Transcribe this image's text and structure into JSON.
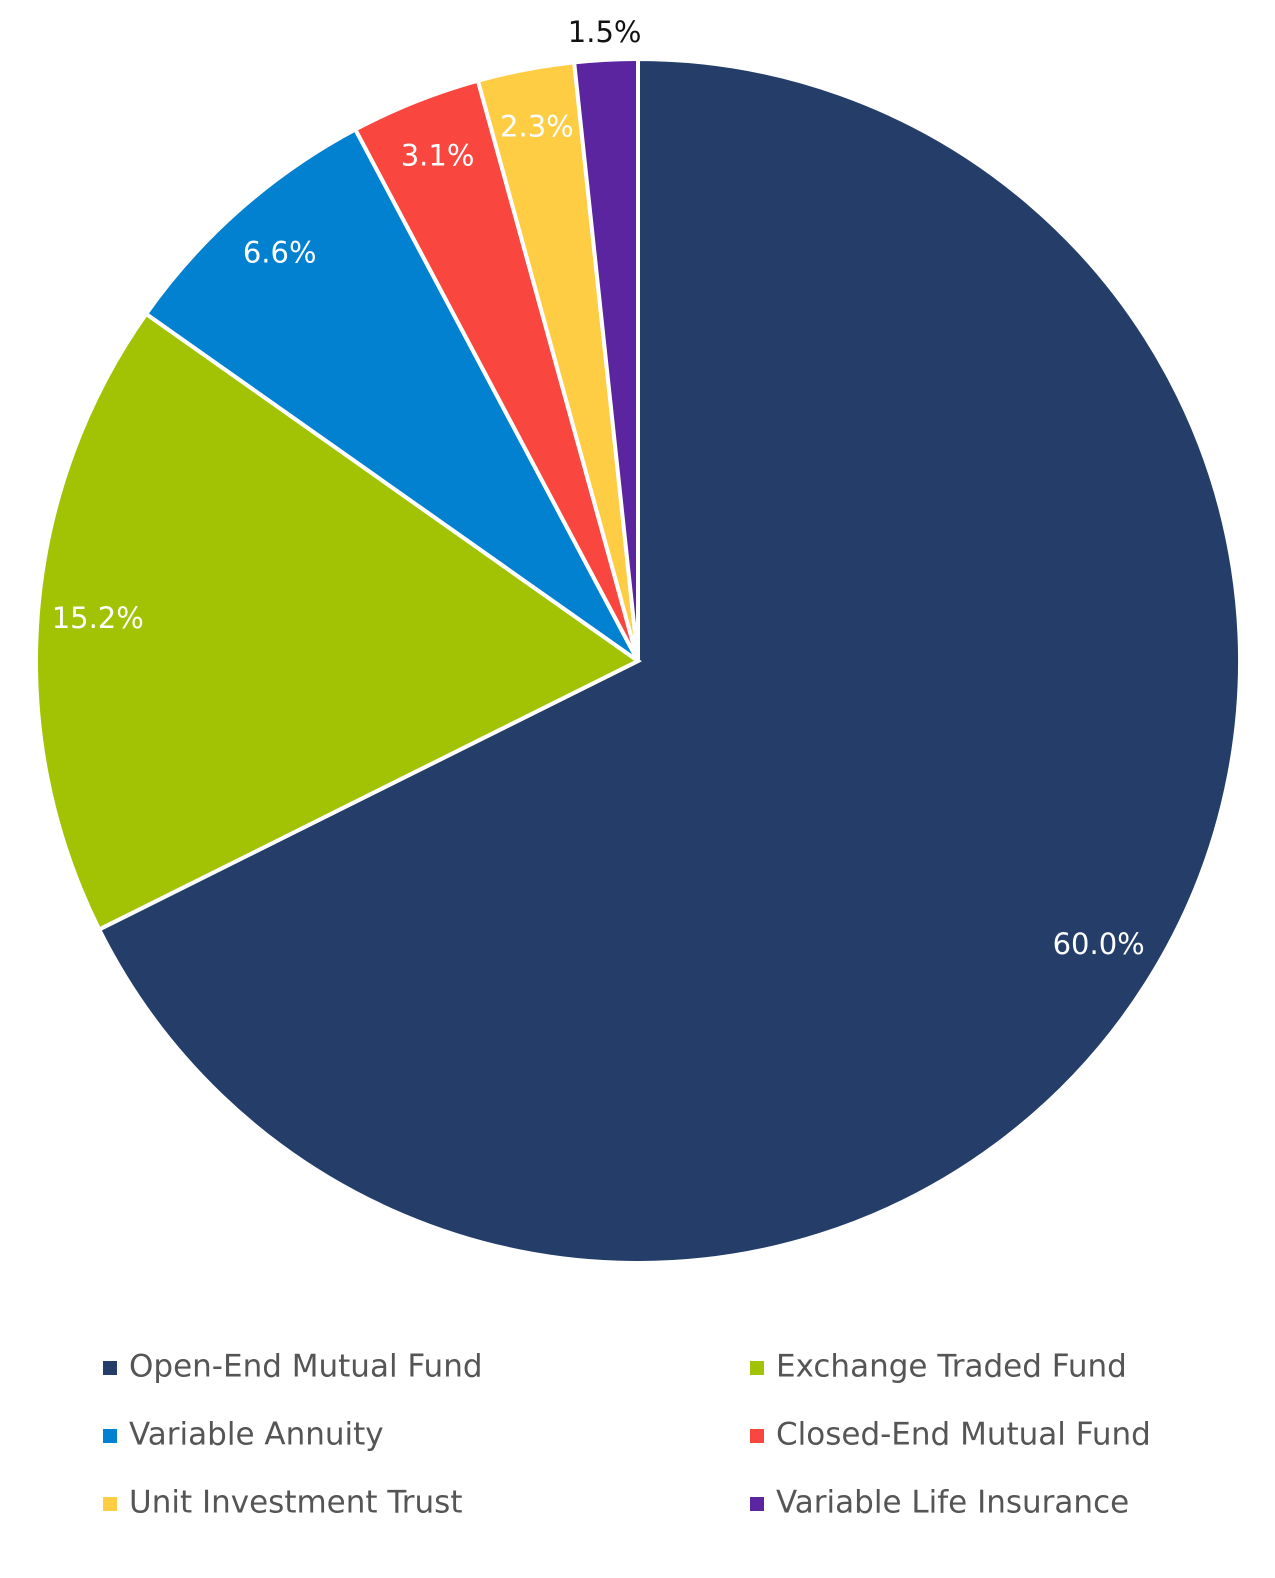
{
  "chart_data": {
    "type": "pie",
    "categories": [
      "Open-End Mutual Fund",
      "Exchange Traded Fund",
      "Variable Annuity",
      "Closed-End Mutual Fund",
      "Unit Investment Trust",
      "Variable Life Insurance"
    ],
    "values": [
      60.0,
      15.2,
      6.6,
      3.1,
      2.3,
      1.5
    ],
    "value_labels": [
      "60.0%",
      "15.2%",
      "6.6%",
      "3.1%",
      "2.3%",
      "1.5%"
    ],
    "colors": [
      "#243e69",
      "#a2c304",
      "#0281d1",
      "#f9463e",
      "#fecd44",
      "#5c25a0"
    ]
  }
}
